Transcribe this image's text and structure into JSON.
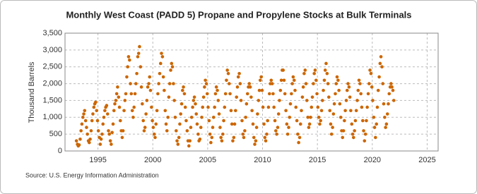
{
  "chart_data": {
    "type": "scatter",
    "title": "Monthly West Coast (PADD 5) Propane and Propylene Stocks at Bulk Terminals",
    "y_label": "Thousand Barrels",
    "source": "Source: U.S. Energy Information Administration",
    "grid": true,
    "xlim": [
      1992,
      2026
    ],
    "xticks": [
      1995,
      2000,
      2005,
      2010,
      2015,
      2020,
      2025
    ],
    "ylim": [
      0,
      3500
    ],
    "yticks": [
      0,
      500,
      {
        "value": 1000,
        "label": "1,000"
      },
      {
        "value": 1500,
        "label": "1,500"
      },
      {
        "value": 2000,
        "label": "2,000"
      },
      {
        "value": 2500,
        "label": "2,500"
      },
      {
        "value": 3000,
        "label": "3,000"
      },
      {
        "value": 3500,
        "label": "3,500"
      }
    ],
    "series": [
      {
        "color": "#cc6600",
        "x": [
          1993.04,
          1993.13,
          1993.21,
          1993.29,
          1993.38,
          1993.46,
          1993.54,
          1993.63,
          1993.71,
          1993.79,
          1993.88,
          1993.96,
          1994.04,
          1994.13,
          1994.21,
          1994.29,
          1994.38,
          1994.46,
          1994.54,
          1994.63,
          1994.71,
          1994.79,
          1994.88,
          1994.96,
          1995.04,
          1995.13,
          1995.21,
          1995.29,
          1995.38,
          1995.46,
          1995.54,
          1995.63,
          1995.71,
          1995.79,
          1995.88,
          1995.96,
          1996.04,
          1996.13,
          1996.21,
          1996.29,
          1996.38,
          1996.46,
          1996.54,
          1996.63,
          1996.71,
          1996.79,
          1996.88,
          1996.96,
          1997.04,
          1997.13,
          1997.21,
          1997.29,
          1997.38,
          1997.46,
          1997.54,
          1997.63,
          1997.71,
          1997.79,
          1997.88,
          1997.96,
          1998.04,
          1998.13,
          1998.21,
          1998.29,
          1998.38,
          1998.46,
          1998.54,
          1998.63,
          1998.71,
          1998.79,
          1998.88,
          1998.96,
          1999.04,
          1999.13,
          1999.21,
          1999.29,
          1999.38,
          1999.46,
          1999.54,
          1999.63,
          1999.71,
          1999.79,
          1999.88,
          1999.96,
          2000.04,
          2000.13,
          2000.21,
          2000.29,
          2000.38,
          2000.46,
          2000.54,
          2000.63,
          2000.71,
          2000.79,
          2000.88,
          2000.96,
          2001.04,
          2001.13,
          2001.21,
          2001.29,
          2001.38,
          2001.46,
          2001.54,
          2001.63,
          2001.71,
          2001.79,
          2001.88,
          2001.96,
          2002.04,
          2002.13,
          2002.21,
          2002.29,
          2002.38,
          2002.46,
          2002.54,
          2002.63,
          2002.71,
          2002.79,
          2002.88,
          2002.96,
          2003.04,
          2003.13,
          2003.21,
          2003.29,
          2003.38,
          2003.46,
          2003.54,
          2003.63,
          2003.71,
          2003.79,
          2003.88,
          2003.96,
          2004.04,
          2004.13,
          2004.21,
          2004.29,
          2004.38,
          2004.46,
          2004.54,
          2004.63,
          2004.71,
          2004.79,
          2004.88,
          2004.96,
          2005.04,
          2005.13,
          2005.21,
          2005.29,
          2005.38,
          2005.46,
          2005.54,
          2005.63,
          2005.71,
          2005.79,
          2005.88,
          2005.96,
          2006.04,
          2006.13,
          2006.21,
          2006.29,
          2006.38,
          2006.46,
          2006.54,
          2006.63,
          2006.71,
          2006.79,
          2006.88,
          2006.96,
          2007.04,
          2007.13,
          2007.21,
          2007.29,
          2007.38,
          2007.46,
          2007.54,
          2007.63,
          2007.71,
          2007.79,
          2007.88,
          2007.96,
          2008.04,
          2008.13,
          2008.21,
          2008.29,
          2008.38,
          2008.46,
          2008.54,
          2008.63,
          2008.71,
          2008.79,
          2008.88,
          2008.96,
          2009.04,
          2009.13,
          2009.21,
          2009.29,
          2009.38,
          2009.46,
          2009.54,
          2009.63,
          2009.71,
          2009.79,
          2009.88,
          2009.96,
          2010.04,
          2010.13,
          2010.21,
          2010.29,
          2010.38,
          2010.46,
          2010.54,
          2010.63,
          2010.71,
          2010.79,
          2010.88,
          2010.96,
          2011.04,
          2011.13,
          2011.21,
          2011.29,
          2011.38,
          2011.46,
          2011.54,
          2011.63,
          2011.71,
          2011.79,
          2011.88,
          2011.96,
          2012.04,
          2012.13,
          2012.21,
          2012.29,
          2012.38,
          2012.46,
          2012.54,
          2012.63,
          2012.71,
          2012.79,
          2012.88,
          2012.96,
          2013.04,
          2013.13,
          2013.21,
          2013.29,
          2013.38,
          2013.46,
          2013.54,
          2013.63,
          2013.71,
          2013.79,
          2013.88,
          2013.96,
          2014.04,
          2014.13,
          2014.21,
          2014.29,
          2014.38,
          2014.46,
          2014.54,
          2014.63,
          2014.71,
          2014.79,
          2014.88,
          2014.96,
          2015.04,
          2015.13,
          2015.21,
          2015.29,
          2015.38,
          2015.46,
          2015.54,
          2015.63,
          2015.71,
          2015.79,
          2015.88,
          2015.96,
          2016.04,
          2016.13,
          2016.21,
          2016.29,
          2016.38,
          2016.46,
          2016.54,
          2016.63,
          2016.71,
          2016.79,
          2016.88,
          2016.96,
          2017.04,
          2017.13,
          2017.21,
          2017.29,
          2017.38,
          2017.46,
          2017.54,
          2017.63,
          2017.71,
          2017.79,
          2017.88,
          2017.96,
          2018.04,
          2018.13,
          2018.21,
          2018.29,
          2018.38,
          2018.46,
          2018.54,
          2018.63,
          2018.71,
          2018.79,
          2018.88,
          2018.96,
          2019.04,
          2019.13,
          2019.21,
          2019.29,
          2019.38,
          2019.46,
          2019.54,
          2019.63,
          2019.71,
          2019.79,
          2019.88,
          2019.96,
          2020.04,
          2020.13,
          2020.21,
          2020.29,
          2020.38,
          2020.46,
          2020.54,
          2020.63,
          2020.71,
          2020.79,
          2020.88,
          2020.96,
          2021.04,
          2021.13,
          2021.21,
          2021.29,
          2021.38,
          2021.46,
          2021.54,
          2021.63,
          2021.71,
          2021.79,
          2021.88,
          2021.96
        ],
        "values": [
          300,
          200,
          150,
          180,
          350,
          600,
          800,
          1000,
          1100,
          1200,
          900,
          700,
          500,
          300,
          250,
          350,
          600,
          900,
          1100,
          1300,
          1400,
          1450,
          1200,
          900,
          600,
          400,
          200,
          350,
          500,
          800,
          1000,
          1200,
          1300,
          1350,
          1100,
          600,
          500,
          300,
          200,
          550,
          800,
          1200,
          1400,
          1500,
          1700,
          1900,
          1600,
          1300,
          900,
          600,
          400,
          600,
          1200,
          1500,
          1700,
          2200,
          2500,
          2800,
          2700,
          2000,
          1700,
          1200,
          1000,
          1300,
          1700,
          2000,
          2300,
          2800,
          2900,
          3100,
          2500,
          1900,
          1400,
          900,
          600,
          700,
          1100,
          1500,
          1900,
          2000,
          2200,
          1800,
          1300,
          900,
          700,
          500,
          400,
          800,
          1200,
          1700,
          2000,
          2300,
          2600,
          2900,
          2800,
          2200,
          1800,
          1200,
          800,
          600,
          1000,
          1600,
          2000,
          2400,
          2600,
          2500,
          2000,
          1500,
          1000,
          600,
          300,
          200,
          400,
          800,
          1100,
          1400,
          1800,
          1900,
          1700,
          1300,
          900,
          600,
          300,
          150,
          300,
          700,
          1000,
          1300,
          1500,
          1600,
          1400,
          1100,
          800,
          500,
          300,
          350,
          700,
          1000,
          1300,
          1600,
          1900,
          2100,
          2000,
          1700,
          1300,
          900,
          500,
          250,
          400,
          700,
          1000,
          1300,
          1700,
          1900,
          1800,
          1500,
          1100,
          700,
          400,
          300,
          500,
          900,
          1300,
          1700,
          2100,
          2400,
          2300,
          2000,
          1700,
          1200,
          800,
          300,
          400,
          800,
          1200,
          1600,
          1900,
          2200,
          2300,
          2000,
          1500,
          900,
          500,
          400,
          600,
          1000,
          1400,
          1700,
          1900,
          2000,
          1900,
          1600,
          1200,
          800,
          400,
          200,
          300,
          700,
          1100,
          1500,
          1800,
          2100,
          2200,
          1800,
          1300,
          800,
          400,
          300,
          500,
          900,
          1300,
          1700,
          2000,
          2100,
          2000,
          1700,
          1300,
          900,
          600,
          500,
          700,
          1100,
          1500,
          1800,
          2100,
          2400,
          2400,
          2100,
          1700,
          1200,
          800,
          500,
          700,
          1000,
          1400,
          1700,
          2000,
          2200,
          2100,
          1800,
          1300,
          900,
          500,
          250,
          400,
          800,
          1200,
          1600,
          1900,
          2300,
          2400,
          2000,
          1500,
          1000,
          700,
          800,
          1000,
          1300,
          1600,
          2000,
          2300,
          2400,
          2100,
          1700,
          1300,
          1000,
          800,
          900,
          1200,
          1500,
          1800,
          2100,
          2400,
          2600,
          2300,
          2000,
          1600,
          1200,
          800,
          500,
          700,
          1100,
          1400,
          1700,
          2000,
          2200,
          2100,
          1800,
          1400,
          1000,
          600,
          400,
          600,
          900,
          1200,
          1500,
          1800,
          2000,
          1900,
          1600,
          1200,
          800,
          500,
          400,
          600,
          900,
          1200,
          1500,
          1800,
          2100,
          2000,
          1700,
          1300,
          900,
          600,
          300,
          500,
          900,
          1300,
          1700,
          2000,
          2400,
          2300,
          1900,
          1500,
          1000,
          700,
          400,
          800,
          1300,
          1800,
          2200,
          2600,
          2800,
          2500,
          2000,
          1400,
          1000,
          700,
          800,
          1100,
          1400,
          1700,
          1900,
          2000,
          1900,
          1800,
          1500
        ]
      }
    ]
  }
}
